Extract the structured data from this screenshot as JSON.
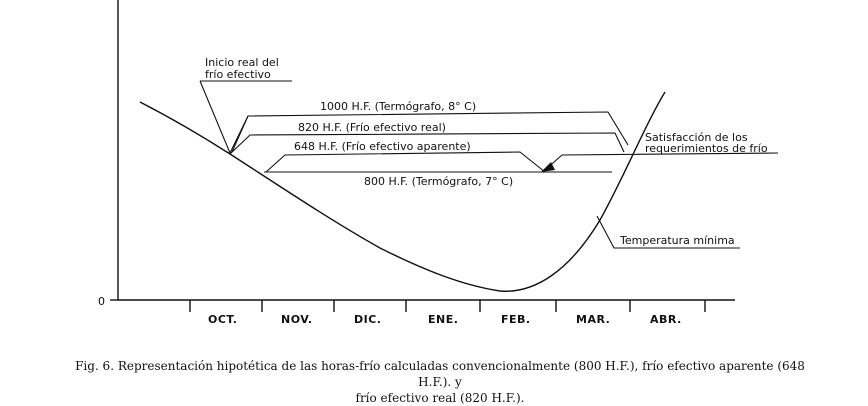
{
  "diagram": {
    "zero_label": "0",
    "months": [
      "OCT.",
      "NOV.",
      "DIC.",
      "ENE.",
      "FEB.",
      "MAR.",
      "ABR."
    ],
    "annotations": {
      "inicio_line1": "Inicio real del",
      "inicio_line2": "frío efectivo",
      "h1000": "1000 H.F. (Termógrafo, 8° C)",
      "h820": "820 H.F. (Frío efectivo real)",
      "h648": "648 H.F. (Frío efectivo aparente)",
      "h800": "800 H.F. (Termógrafo, 7° C)",
      "satisfaccion_line1": "Satisfacción de los",
      "satisfaccion_line2": "requerimientos de frío",
      "temperatura": "Temperatura mínima"
    },
    "caption_line1": "Fig. 6. Representación hipotética de las horas-frío calculadas convencionalmente (800 H.F.), frío efectivo aparente (648 H.F.). y",
    "caption_line2": "frío efectivo real (820 H.F.)."
  }
}
